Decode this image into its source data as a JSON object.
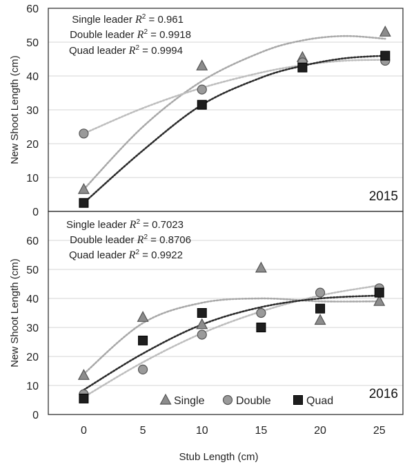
{
  "figure": {
    "xlabel": "Stub Length (cm)",
    "legend": [
      "Single",
      "Double",
      "Quad"
    ]
  },
  "chart_data": [
    {
      "type": "scatter",
      "panel_label": "2015",
      "ylabel": "New Shoot Length (cm)",
      "ylim": [
        0,
        60
      ],
      "yticks": [
        "0",
        "10",
        "20",
        "30",
        "40",
        "50",
        "60"
      ],
      "annotations": [
        {
          "label": "Single leader",
          "r2": "= 0.961"
        },
        {
          "label": "Double leader",
          "r2": "= 0.9918"
        },
        {
          "label": "Quad leader",
          "r2": "= 0.9994"
        }
      ],
      "series": [
        {
          "name": "Single",
          "marker": "triangle",
          "color": "#8c8c8c",
          "x": [
            0,
            10,
            18.5,
            25.5
          ],
          "y": [
            6.5,
            43,
            45.5,
            53
          ]
        },
        {
          "name": "Double",
          "marker": "circle",
          "color": "#9a9a9a",
          "x": [
            0,
            10,
            18.5,
            25.5
          ],
          "y": [
            23,
            36,
            44,
            44.5
          ]
        },
        {
          "name": "Quad",
          "marker": "square",
          "color": "#1e1e1e",
          "x": [
            0,
            10,
            18.5,
            25.5
          ],
          "y": [
            2.5,
            31.5,
            42.5,
            46
          ]
        }
      ],
      "trendlines": [
        {
          "series": "Single",
          "color": "#a8a8a8",
          "x": [
            0,
            5,
            10,
            15,
            18.5,
            22,
            25.5
          ],
          "y": [
            6.5,
            25,
            38.5,
            47,
            50.5,
            51.8,
            51
          ]
        },
        {
          "series": "Double",
          "color": "#bdbdbd",
          "x": [
            0,
            5,
            10,
            15,
            18.5,
            22,
            25.5
          ],
          "y": [
            23,
            30.5,
            36.5,
            41,
            43.2,
            44.5,
            44.8
          ]
        },
        {
          "series": "Quad",
          "color": "#2a2a2a",
          "x": [
            0,
            5,
            10,
            15,
            18.5,
            22,
            25.5
          ],
          "y": [
            2.5,
            18,
            31.5,
            39.5,
            43,
            45.2,
            46
          ]
        }
      ]
    },
    {
      "type": "scatter",
      "panel_label": "2016",
      "ylabel": "New Shoot Length (cm)",
      "ylim": [
        0,
        70
      ],
      "yticks": [
        "0",
        "10",
        "20",
        "30",
        "40",
        "50",
        "60"
      ],
      "xlim": [
        -3,
        27
      ],
      "xticks": [
        "0",
        "5",
        "10",
        "15",
        "20",
        "25"
      ],
      "annotations": [
        {
          "label": "Single leader",
          "r2": "= 0.7023"
        },
        {
          "label": "Double leader",
          "r2": "= 0.8706"
        },
        {
          "label": "Quad leader",
          "r2": "= 0.9922"
        }
      ],
      "series": [
        {
          "name": "Single",
          "marker": "triangle",
          "color": "#8c8c8c",
          "x": [
            0,
            5,
            10,
            15,
            20,
            25
          ],
          "y": [
            13.5,
            33.5,
            31,
            50.5,
            32.5,
            39
          ]
        },
        {
          "name": "Double",
          "marker": "circle",
          "color": "#9a9a9a",
          "x": [
            0,
            5,
            10,
            15,
            20,
            25
          ],
          "y": [
            7,
            15.5,
            27.5,
            35,
            42,
            43.5
          ]
        },
        {
          "name": "Quad",
          "marker": "square",
          "color": "#1e1e1e",
          "x": [
            0,
            5,
            10,
            15,
            20,
            25
          ],
          "y": [
            5.5,
            25.5,
            35,
            30,
            36.5,
            42
          ]
        }
      ],
      "trendlines": [
        {
          "series": "Single",
          "color": "#a8a8a8",
          "x": [
            0,
            5,
            10,
            15,
            20,
            25
          ],
          "y": [
            14,
            31.5,
            38.5,
            40,
            39,
            39
          ]
        },
        {
          "series": "Double",
          "color": "#bdbdbd",
          "x": [
            0,
            5,
            10,
            15,
            20,
            25
          ],
          "y": [
            6,
            18,
            28,
            35.5,
            41,
            44.5
          ]
        },
        {
          "series": "Quad",
          "color": "#2a2a2a",
          "x": [
            0,
            5,
            10,
            15,
            20,
            25
          ],
          "y": [
            8.5,
            21,
            31,
            37,
            40,
            41
          ]
        }
      ]
    }
  ]
}
